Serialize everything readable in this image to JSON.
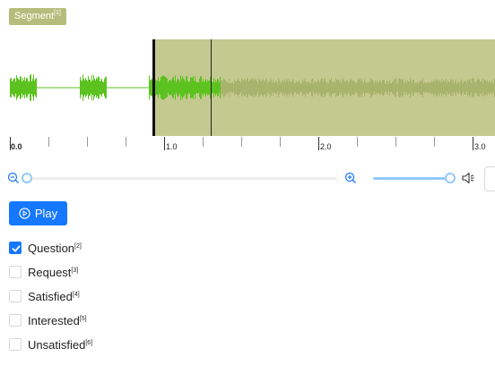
{
  "segment_tag": {
    "label": "Segment",
    "hotkey": "[1]"
  },
  "waveform": {
    "selected_region_color": "#c4c98f",
    "wave_color_active": "#5bc21f",
    "wave_color_in_region": "#a8b46d",
    "region_start_seconds": 0.93,
    "cursor_seconds": 1.3
  },
  "timeline": {
    "major_ticks": [
      {
        "label": "0.0"
      },
      {
        "label": "1.0"
      },
      {
        "label": "2.0"
      },
      {
        "label": "3.0"
      }
    ]
  },
  "controls": {
    "zoom_level": 0,
    "volume_level": 1.0,
    "accent_color": "#91caff"
  },
  "play_button": {
    "label": "Play"
  },
  "choices": [
    {
      "label": "Question",
      "hotkey": "[2]",
      "checked": true
    },
    {
      "label": "Request",
      "hotkey": "[3]",
      "checked": false
    },
    {
      "label": "Satisfied",
      "hotkey": "[4]",
      "checked": false
    },
    {
      "label": "Interested",
      "hotkey": "[5]",
      "checked": false
    },
    {
      "label": "Unsatisfied",
      "hotkey": "[6]",
      "checked": false
    }
  ]
}
